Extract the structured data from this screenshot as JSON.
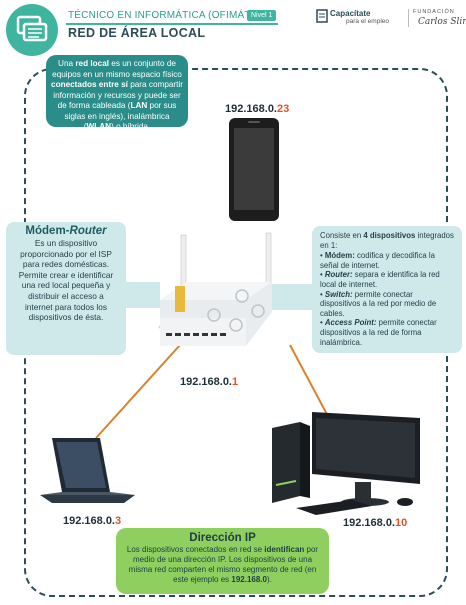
{
  "header": {
    "course": "TÉCNICO EN INFORMÁTICA (OFIMÁTICA)",
    "level": "Nivel 1",
    "title": "RED DE ÁREA LOCAL",
    "brand_main": "Capacítate",
    "brand_sub": "para el empleo",
    "foundation_label": "FUNDACIÓN",
    "foundation_name": "Carlos Slim"
  },
  "intro": {
    "p1": "Una ",
    "p2": "red local",
    "p3": " es un conjunto de equipos en un mismo espacio físico ",
    "p4": "conectados entre sí",
    "p5": " para compartir información y recursos y puede ser de forma cableada (",
    "p6": "LAN",
    "p7": " por sus siglas en inglés), inalámbrica (",
    "p8": "WLAN",
    "p9": ") o híbrida."
  },
  "devices": {
    "phone_ip_prefix": "192.168.0.",
    "phone_ip_suffix": "23",
    "router_ip_prefix": "192.168.0.",
    "router_ip_suffix": "1",
    "laptop_ip_prefix": "192.168.0.",
    "laptop_ip_suffix": "3",
    "desktop_ip_prefix": "192.168.0.",
    "desktop_ip_suffix": "10"
  },
  "modem": {
    "title_a": "Módem-",
    "title_b": "Router",
    "text": "Es un dispositivo proporcionado por el ISP para redes domésticas. Permite crear e identificar una red local pequeña y distribuir el acceso a internet para todos los dispositivos de ésta."
  },
  "components": {
    "intro_a": "Consiste en ",
    "intro_b": "4 dispositivos",
    "intro_c": " integrados en 1:",
    "items": [
      {
        "name": "Módem:",
        "text": " codifica y decodifica la señal de internet."
      },
      {
        "name": "Router:",
        "text": " separa e identifica la red local de internet."
      },
      {
        "name": "Switch:",
        "text": " permite conectar dispositivos a la red por medio de cables."
      },
      {
        "name": "Access Point:",
        "text": " permite conectar dispositivos a la red de forma inalámbrica."
      }
    ]
  },
  "ip_box": {
    "title": "Dirección IP",
    "t1": "Los dispositivos conectados en red se ",
    "t2": "identifican",
    "t3": " por medio de una dirección IP. Los dispositivos de una misma red comparten el mismo segmento de red (en este ejemplo es ",
    "t4": "192.168.0",
    "t5": ")."
  },
  "colors": {
    "teal": "#2a8d8a",
    "light_teal": "#cfe9eb",
    "green": "#8ecf5f",
    "ip_accent": "#e2532b",
    "link_line": "#d9822b"
  }
}
